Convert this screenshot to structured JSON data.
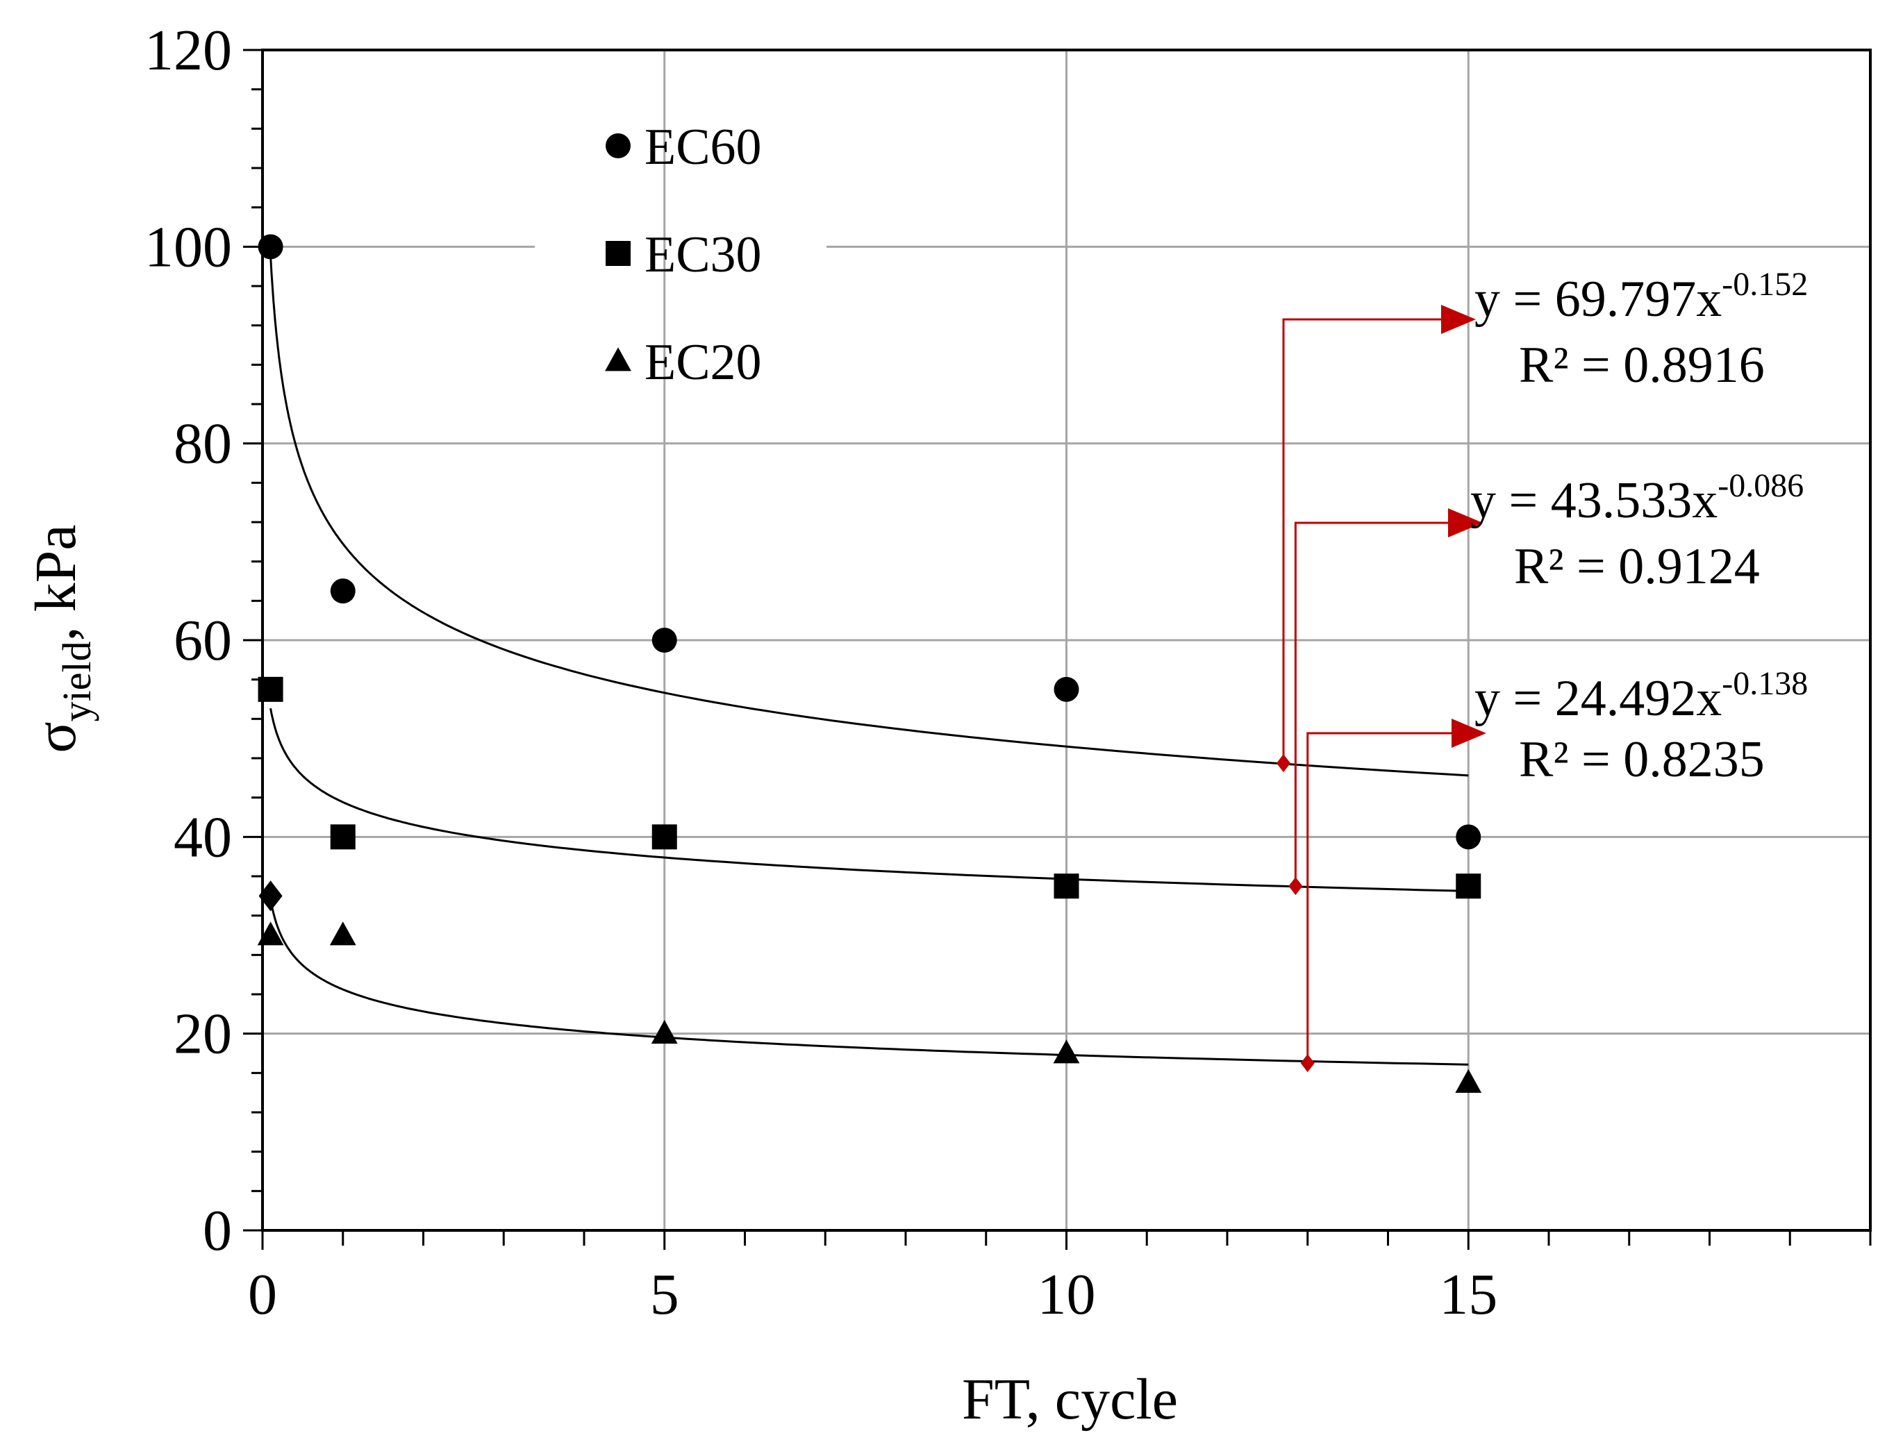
{
  "chart_data": {
    "type": "scatter",
    "xlabel": "FT, cycle",
    "ylabel": {
      "main": "σ",
      "sub": "yield",
      "rest": ", kPa"
    },
    "xlim": [
      0,
      20
    ],
    "ylim": [
      0,
      120
    ],
    "x_ticks": [
      0,
      5,
      10,
      15
    ],
    "x_minor_step": 1,
    "y_ticks": [
      0,
      20,
      40,
      60,
      80,
      100,
      120
    ],
    "y_minor_step": 4,
    "grid": true,
    "legend_position": "top-left",
    "series": [
      {
        "name": "EC60",
        "marker": "circle",
        "x": [
          0.1,
          1,
          5,
          10,
          15
        ],
        "y": [
          100,
          65,
          60,
          55,
          40
        ],
        "fit": {
          "a": 69.797,
          "b": -0.152
        }
      },
      {
        "name": "EC30",
        "marker": "square",
        "x": [
          0.1,
          1,
          5,
          10,
          15
        ],
        "y": [
          55,
          40,
          40,
          35,
          35
        ],
        "fit": {
          "a": 43.533,
          "b": -0.086
        }
      },
      {
        "name": "EC20",
        "marker": "triangle",
        "x": [
          0.1,
          1,
          5,
          10,
          15
        ],
        "y": [
          30,
          30,
          20,
          18,
          15
        ],
        "fit": {
          "a": 24.492,
          "b": -0.138
        }
      }
    ],
    "extra_points": [
      {
        "marker": "diamond",
        "x": 0.1,
        "y": 34
      }
    ],
    "annotations": [
      {
        "equation_prefix": "y = 69.797x",
        "exponent": "-0.152",
        "r2_label": "R² = 0.8916",
        "anchor_x": 12.7,
        "anchor_y": 47.5
      },
      {
        "equation_prefix": "y = 43.533x",
        "exponent": "-0.086",
        "r2_label": "R² = 0.9124",
        "anchor_x": 12.85,
        "anchor_y": 35
      },
      {
        "equation_prefix": "y = 24.492x",
        "exponent": "-0.138",
        "r2_label": "R² = 0.8235",
        "anchor_x": 13,
        "anchor_y": 17
      }
    ],
    "colors": {
      "marker": "#000000",
      "fit_line": "#000000",
      "grid": "#a6a6a6",
      "annotation_arrow": "#c00000"
    }
  }
}
